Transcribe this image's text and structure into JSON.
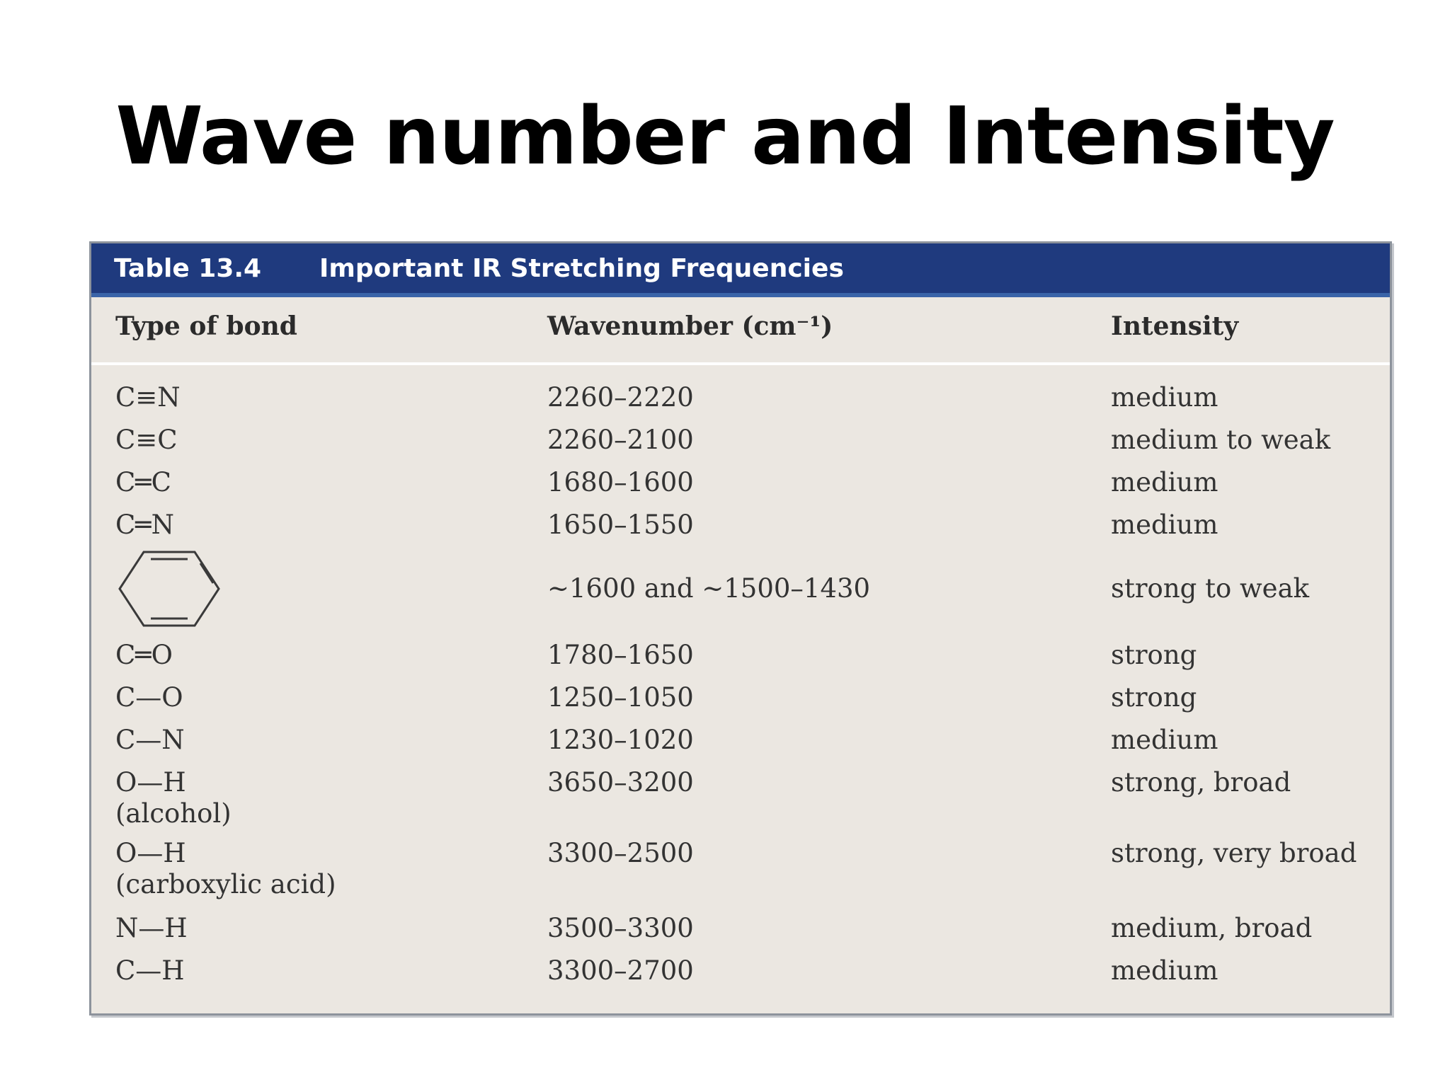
{
  "slide": {
    "title": "Wave number and Intensity"
  },
  "table": {
    "number": "Table 13.4",
    "caption": "Important IR Stretching Frequencies",
    "headers": {
      "bond": "Type of bond",
      "wavenumber": "Wavenumber (cm⁻¹)",
      "intensity": "Intensity"
    },
    "rows": [
      {
        "bond": "C≡N",
        "note": "",
        "wavenumber": "2260–2220",
        "intensity": "medium"
      },
      {
        "bond": "C≡C",
        "note": "",
        "wavenumber": "2260–2100",
        "intensity": "medium to weak"
      },
      {
        "bond": "C═C",
        "note": "",
        "wavenumber": "1680–1600",
        "intensity": "medium"
      },
      {
        "bond": "C═N",
        "note": "",
        "wavenumber": "1650–1550",
        "intensity": "medium"
      },
      {
        "bond": "",
        "bond_icon": "benzene-ring-icon",
        "note": "",
        "wavenumber": "~1600 and ~1500–1430",
        "intensity": "strong to weak"
      },
      {
        "bond": "C═O",
        "note": "",
        "wavenumber": "1780–1650",
        "intensity": "strong"
      },
      {
        "bond": "C—O",
        "note": "",
        "wavenumber": "1250–1050",
        "intensity": "strong"
      },
      {
        "bond": "C—N",
        "note": "",
        "wavenumber": "1230–1020",
        "intensity": "medium"
      },
      {
        "bond": "O—H",
        "note": "(alcohol)",
        "wavenumber": "3650–3200",
        "intensity": "strong, broad"
      },
      {
        "bond": "O—H",
        "note": "(carboxylic acid)",
        "wavenumber": "3300–2500",
        "intensity": "strong, very broad"
      },
      {
        "bond": "N—H",
        "note": "",
        "wavenumber": "3500–3300",
        "intensity": "medium, broad"
      },
      {
        "bond": "C—H",
        "note": "",
        "wavenumber": "3300–2700",
        "intensity": "medium"
      }
    ]
  },
  "colors": {
    "banner": "#1f3a7e",
    "table_background": "#ebe7e1",
    "text": "#333333"
  }
}
